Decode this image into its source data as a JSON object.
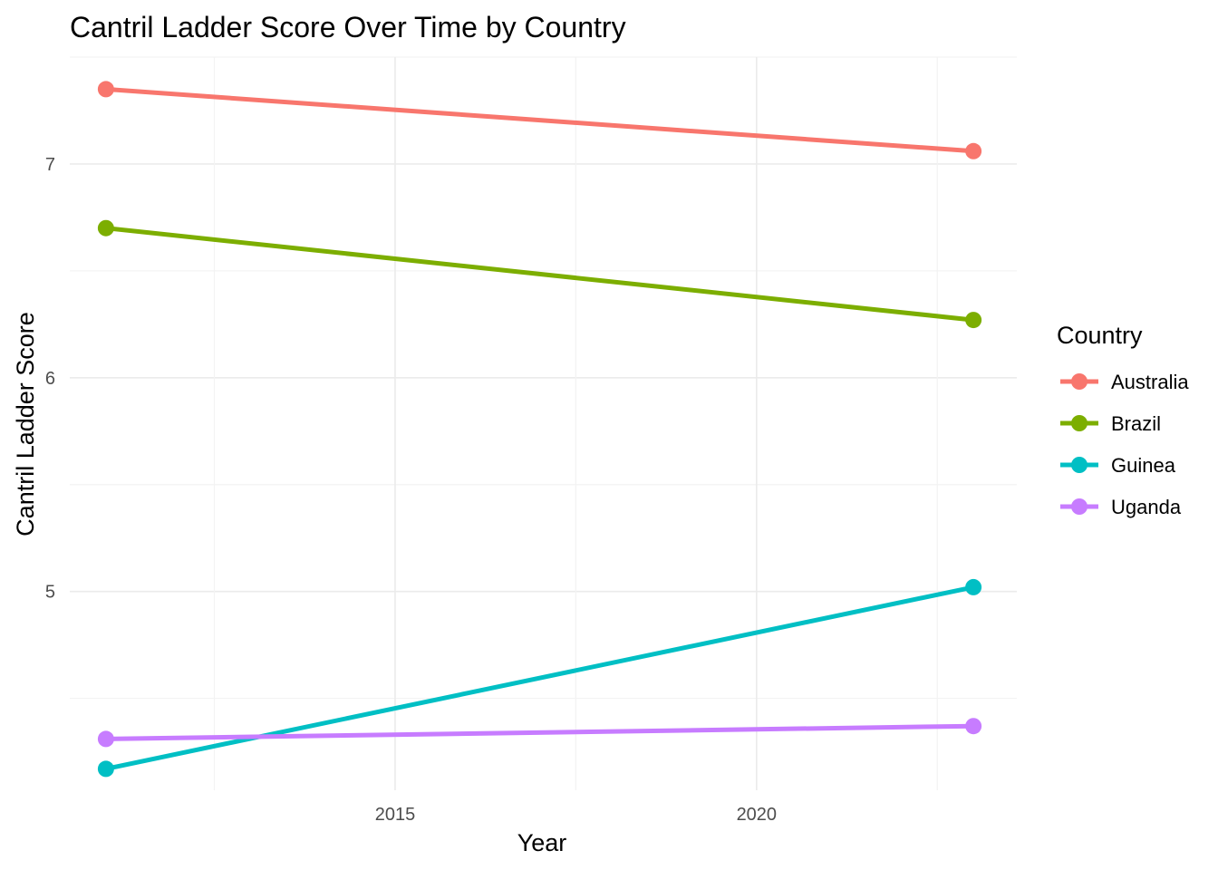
{
  "chart_data": {
    "type": "line",
    "title": "Cantril Ladder Score Over Time by Country",
    "xlabel": "Year",
    "ylabel": "Cantril Ladder Score",
    "x_ticks": [
      2015,
      2020
    ],
    "y_ticks": [
      5,
      6,
      7
    ],
    "xlim": [
      2010.5,
      2023.6
    ],
    "ylim": [
      4.07,
      7.5
    ],
    "grid": true,
    "legend": {
      "title": "Country",
      "position": "right"
    },
    "series": [
      {
        "name": "Australia",
        "color": "#F8766D",
        "x": [
          2011,
          2023
        ],
        "y": [
          7.35,
          7.06
        ]
      },
      {
        "name": "Brazil",
        "color": "#7CAE00",
        "x": [
          2011,
          2023
        ],
        "y": [
          6.7,
          6.27
        ]
      },
      {
        "name": "Guinea",
        "color": "#00BFC4",
        "x": [
          2011,
          2023
        ],
        "y": [
          4.17,
          5.02
        ]
      },
      {
        "name": "Uganda",
        "color": "#C77CFF",
        "x": [
          2011,
          2023
        ],
        "y": [
          4.31,
          4.37
        ]
      }
    ]
  }
}
